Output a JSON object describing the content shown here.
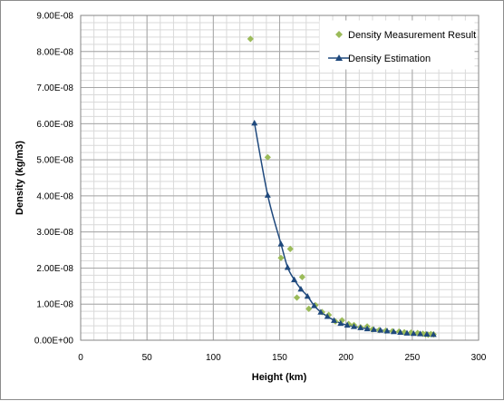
{
  "chart_data": {
    "type": "scatter",
    "title": "",
    "xlabel": "Height (km)",
    "ylabel": "Density (kg/m3)",
    "xlim": [
      0,
      300
    ],
    "ylim": [
      0,
      9e-08
    ],
    "x_ticks": [
      0,
      50,
      100,
      150,
      200,
      250,
      300
    ],
    "x_tick_labels": [
      "0",
      "50",
      "100",
      "150",
      "200",
      "250",
      "300"
    ],
    "y_ticks": [
      0,
      1e-08,
      2e-08,
      3e-08,
      4e-08,
      5e-08,
      6e-08,
      7e-08,
      8e-08,
      9e-08
    ],
    "y_tick_labels": [
      "0.00E+00",
      "1.00E-08",
      "2.00E-08",
      "3.00E-08",
      "4.00E-08",
      "5.00E-08",
      "6.00E-08",
      "7.00E-08",
      "8.00E-08",
      "9.00E-08"
    ],
    "grid": true,
    "legend_position": "top-right",
    "series": [
      {
        "name": "Density Measurement Result",
        "type": "scatter",
        "marker": "diamond",
        "color": "#9bbb59",
        "points": [
          [
            128,
            8.35e-08
          ],
          [
            141,
            5.07e-08
          ],
          [
            151,
            2.28e-08
          ],
          [
            158,
            2.53e-08
          ],
          [
            163,
            1.18e-08
          ],
          [
            167,
            1.75e-08
          ],
          [
            172,
            8.7e-09
          ],
          [
            177,
            9.7e-09
          ],
          [
            182,
            7.8e-09
          ],
          [
            187,
            7e-09
          ],
          [
            192,
            5.2e-09
          ],
          [
            197,
            5.5e-09
          ],
          [
            202,
            4.5e-09
          ],
          [
            206,
            4.2e-09
          ],
          [
            211,
            3.6e-09
          ],
          [
            216,
            3.8e-09
          ],
          [
            220,
            3e-09
          ],
          [
            225,
            2.8e-09
          ],
          [
            230,
            2.6e-09
          ],
          [
            235,
            2.5e-09
          ],
          [
            240,
            2.4e-09
          ],
          [
            244,
            2.2e-09
          ],
          [
            249,
            2.1e-09
          ],
          [
            254,
            2e-09
          ],
          [
            258,
            1.8e-09
          ],
          [
            260,
            1.6e-09
          ],
          [
            262,
            1.5e-09
          ],
          [
            264,
            1.7e-09
          ],
          [
            266,
            1.6e-09
          ]
        ]
      },
      {
        "name": "Density Estimation",
        "type": "line",
        "marker": "triangle",
        "color": "#1f497d",
        "points": [
          [
            131,
            6.02e-08
          ],
          [
            141,
            4.02e-08
          ],
          [
            151,
            2.67e-08
          ],
          [
            156,
            2.02e-08
          ],
          [
            161,
            1.68e-08
          ],
          [
            166,
            1.42e-08
          ],
          [
            171,
            1.22e-08
          ],
          [
            176,
            9.6e-09
          ],
          [
            181,
            7.8e-09
          ],
          [
            186,
            6.6e-09
          ],
          [
            191,
            5.5e-09
          ],
          [
            196,
            4.7e-09
          ],
          [
            201,
            4.2e-09
          ],
          [
            206,
            3.8e-09
          ],
          [
            211,
            3.5e-09
          ],
          [
            216,
            3.2e-09
          ],
          [
            221,
            3e-09
          ],
          [
            226,
            2.8e-09
          ],
          [
            231,
            2.6e-09
          ],
          [
            236,
            2.4e-09
          ],
          [
            241,
            2.2e-09
          ],
          [
            246,
            2e-09
          ],
          [
            251,
            1.9e-09
          ],
          [
            256,
            1.8e-09
          ],
          [
            261,
            1.7e-09
          ],
          [
            266,
            1.6e-09
          ]
        ]
      }
    ]
  }
}
